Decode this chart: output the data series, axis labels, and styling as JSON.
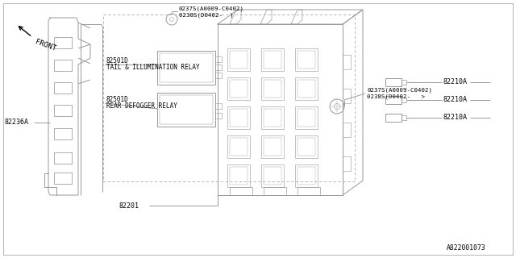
{
  "bg_color": "#ffffff",
  "line_color": "#999999",
  "text_color": "#000000",
  "diagram_id": "A822001073",
  "lw": 0.7,
  "labels": {
    "front": "FRONT",
    "part_left": "82236A",
    "part_bottom": "82201",
    "top_label1": "0237S(A0009-C0402)",
    "top_label2": "0238S(D0402-  )",
    "right_label1": "0237S(A0009-C0402)",
    "right_label2": "0238S(D0402-   >",
    "relay1_code": "82501D",
    "relay1_name": "TAIL & ILLUMINATION RELAY",
    "relay2_code": "82501D",
    "relay2_name": "REAR DEFOGGER RELAY",
    "conn": "82210A"
  }
}
